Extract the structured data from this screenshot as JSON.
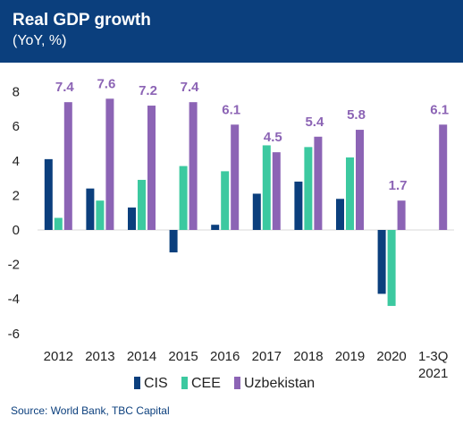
{
  "header": {
    "title": "Real GDP growth",
    "subtitle": "(YoY, %)"
  },
  "source": "Source: World Bank, TBC Capital",
  "colors": {
    "header_bg": "#0b3f7d",
    "cis": "#0b3f7d",
    "cee": "#3cc9a0",
    "uzbekistan": "#8c64b5"
  },
  "chart_data": {
    "type": "bar",
    "categories": [
      "2012",
      "2013",
      "2014",
      "2015",
      "2016",
      "2017",
      "2018",
      "2019",
      "2020",
      "1-3Q\n2021"
    ],
    "series": [
      {
        "name": "CIS",
        "values": [
          4.1,
          2.4,
          1.3,
          -1.3,
          0.3,
          2.1,
          2.8,
          1.8,
          -3.7,
          null
        ]
      },
      {
        "name": "CEE",
        "values": [
          0.7,
          1.7,
          2.9,
          3.7,
          3.4,
          4.9,
          4.8,
          4.2,
          -4.4,
          null
        ]
      },
      {
        "name": "Uzbekistan",
        "values": [
          7.4,
          7.6,
          7.2,
          7.4,
          6.1,
          4.5,
          5.4,
          5.8,
          1.7,
          6.1
        ]
      }
    ],
    "data_labels": [
      "7.4",
      "7.6",
      "7.2",
      "7.4",
      "6.1",
      "4.5",
      "5.4",
      "5.8",
      "1.7",
      "6.1"
    ],
    "yticks": [
      "8",
      "6",
      "4",
      "2",
      "0",
      "-2",
      "-4",
      "-6"
    ],
    "ylim": [
      -6,
      8
    ],
    "legend_placement": "bottom",
    "grid": false,
    "title": "Real GDP growth",
    "subtitle": "(YoY, %)"
  }
}
